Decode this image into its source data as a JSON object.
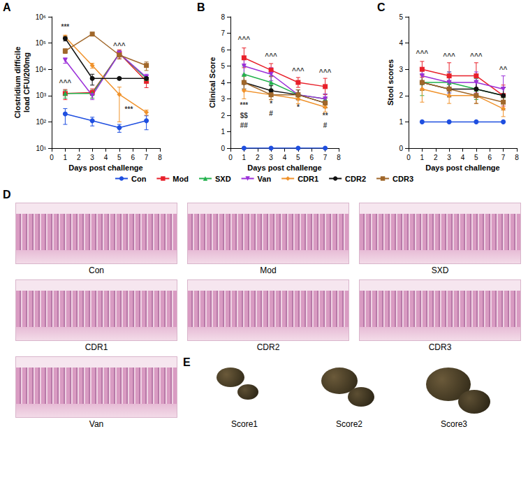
{
  "chart_data": [
    {
      "type": "line",
      "panel": "A",
      "xlabel": "Days post challenge",
      "ylabel": "Clostridium difficile\nload CFU/200mg",
      "x": [
        1,
        3,
        5,
        7
      ],
      "xlim": [
        0,
        8
      ],
      "xticks": [
        0,
        1,
        2,
        3,
        4,
        5,
        6,
        7,
        8
      ],
      "ylim": [
        10,
        1000000
      ],
      "yticks": [
        {
          "value": 10,
          "label": "10¹"
        },
        {
          "value": 100,
          "label": "10²"
        },
        {
          "value": 1000,
          "label": "10³"
        },
        {
          "value": 10000,
          "label": "10⁴"
        },
        {
          "value": 100000,
          "label": "10⁵"
        },
        {
          "value": 1000000,
          "label": "10⁶"
        }
      ],
      "log": "y",
      "grid": false,
      "legend": "bottom",
      "series": [
        {
          "name": "Con",
          "color": "#1f4fe0",
          "marker": "circle",
          "values": [
            200,
            110,
            60,
            110
          ],
          "errors": [
            120,
            40,
            20,
            60
          ]
        },
        {
          "name": "Mod",
          "color": "#e8202a",
          "marker": "square",
          "values": [
            1200,
            1300,
            40000,
            3500
          ],
          "errors": [
            500,
            500,
            15000,
            1500
          ]
        },
        {
          "name": "SXD",
          "color": "#22b14c",
          "marker": "triangle",
          "values": [
            1200,
            1200,
            40000,
            4500
          ],
          "errors": [
            400,
            400,
            10000,
            1500
          ]
        },
        {
          "name": "Van",
          "color": "#9b30d9",
          "marker": "triangle_down",
          "values": [
            22000,
            1000,
            40000,
            5000
          ],
          "errors": [
            5000,
            300,
            10000,
            1500
          ]
        },
        {
          "name": "CDR1",
          "color": "#f0922b",
          "marker": "diamond",
          "values": [
            170000,
            14000,
            1100,
            230
          ],
          "errors": [
            30000,
            3000,
            1000,
            50
          ]
        },
        {
          "name": "CDR2",
          "color": "#111111",
          "marker": "circle",
          "values": [
            150000,
            4500,
            4500,
            4500
          ],
          "errors": [
            30000,
            2000,
            500,
            500
          ]
        },
        {
          "name": "CDR3",
          "color": "#a0672a",
          "marker": "square",
          "values": [
            50000,
            220000,
            35000,
            14000
          ],
          "errors": [
            10000,
            20000,
            10000,
            5000
          ]
        }
      ],
      "annotations": [
        {
          "x": 1,
          "y": 400000,
          "text": "***"
        },
        {
          "x": 1,
          "y": 3000,
          "text": "^^^"
        },
        {
          "x": 5,
          "y": 80000,
          "text": "^^^"
        },
        {
          "x": 5.7,
          "y": 300,
          "text": "***"
        }
      ]
    },
    {
      "type": "line",
      "panel": "B",
      "xlabel": "Days post challenge",
      "ylabel": "Clinical Score",
      "x": [
        1,
        3,
        5,
        7
      ],
      "xlim": [
        0,
        8
      ],
      "xticks": [
        0,
        1,
        2,
        3,
        4,
        5,
        6,
        7,
        8
      ],
      "ylim": [
        0,
        8
      ],
      "yticks": [
        0,
        1,
        2,
        3,
        4,
        5,
        6,
        7,
        8
      ],
      "grid": false,
      "legend": "bottom",
      "series": [
        {
          "name": "Con",
          "color": "#1f4fe0",
          "marker": "circle",
          "values": [
            0,
            0,
            0,
            0
          ],
          "errors": [
            0,
            0,
            0,
            0
          ]
        },
        {
          "name": "Mod",
          "color": "#e8202a",
          "marker": "square",
          "values": [
            5.5,
            4.75,
            4.0,
            3.75
          ],
          "errors": [
            0.6,
            0.4,
            0.3,
            0.5
          ]
        },
        {
          "name": "SXD",
          "color": "#22b14c",
          "marker": "triangle",
          "values": [
            4.5,
            4.0,
            3.25,
            3.0
          ],
          "errors": [
            0.5,
            0.4,
            0.3,
            0.3
          ]
        },
        {
          "name": "Van",
          "color": "#9b30d9",
          "marker": "triangle_down",
          "values": [
            5.0,
            4.5,
            3.25,
            3.0
          ],
          "errors": [
            0.5,
            0.4,
            0.3,
            0.3
          ]
        },
        {
          "name": "CDR1",
          "color": "#f0922b",
          "marker": "diamond",
          "values": [
            3.5,
            3.25,
            3.0,
            2.5
          ],
          "errors": [
            0.5,
            0.3,
            0.3,
            0.3
          ]
        },
        {
          "name": "CDR2",
          "color": "#111111",
          "marker": "circle",
          "values": [
            4.0,
            3.5,
            3.25,
            2.75
          ],
          "errors": [
            0.4,
            0.3,
            0.3,
            0.3
          ]
        },
        {
          "name": "CDR3",
          "color": "#a0672a",
          "marker": "square",
          "values": [
            4.0,
            3.25,
            3.25,
            2.75
          ],
          "errors": [
            0.4,
            0.3,
            0.3,
            0.3
          ]
        }
      ],
      "annotations": [
        {
          "x": 1,
          "y": 6.6,
          "text": "^^^"
        },
        {
          "x": 3,
          "y": 5.6,
          "text": "^^^"
        },
        {
          "x": 5,
          "y": 4.7,
          "text": "^^^"
        },
        {
          "x": 7,
          "y": 4.6,
          "text": "^^^"
        },
        {
          "x": 1,
          "y": 2.6,
          "text": "***"
        },
        {
          "x": 1,
          "y": 2.0,
          "text": "$$"
        },
        {
          "x": 1,
          "y": 1.4,
          "text": "##"
        },
        {
          "x": 3,
          "y": 2.7,
          "text": "*"
        },
        {
          "x": 3,
          "y": 2.1,
          "text": "#"
        },
        {
          "x": 5,
          "y": 2.5,
          "text": "*"
        },
        {
          "x": 7,
          "y": 2.0,
          "text": "**"
        },
        {
          "x": 7,
          "y": 1.4,
          "text": "#"
        }
      ]
    },
    {
      "type": "line",
      "panel": "C",
      "xlabel": "Days post challenge",
      "ylabel": "Stool scores",
      "x": [
        1,
        3,
        5,
        7
      ],
      "xlim": [
        0,
        8
      ],
      "xticks": [
        0,
        1,
        2,
        3,
        4,
        5,
        6,
        7,
        8
      ],
      "ylim": [
        0,
        5
      ],
      "yticks": [
        0,
        1,
        2,
        3,
        4,
        5
      ],
      "grid": false,
      "legend": "bottom",
      "series": [
        {
          "name": "Con",
          "color": "#1f4fe0",
          "marker": "circle",
          "values": [
            1,
            1,
            1,
            1
          ],
          "errors": [
            0,
            0,
            0,
            0
          ]
        },
        {
          "name": "Mod",
          "color": "#e8202a",
          "marker": "square",
          "values": [
            3.0,
            2.75,
            2.75,
            2.0
          ],
          "errors": [
            0.3,
            0.5,
            0.5,
            0.4
          ]
        },
        {
          "name": "SXD",
          "color": "#22b14c",
          "marker": "triangle",
          "values": [
            2.5,
            2.5,
            2.25,
            2.0
          ],
          "errors": [
            0.5,
            0.4,
            0.4,
            0.3
          ]
        },
        {
          "name": "Van",
          "color": "#9b30d9",
          "marker": "triangle_down",
          "values": [
            2.75,
            2.5,
            2.5,
            2.25
          ],
          "errors": [
            0.3,
            0.4,
            0.4,
            0.5
          ]
        },
        {
          "name": "CDR1",
          "color": "#f0922b",
          "marker": "diamond",
          "values": [
            2.25,
            2.0,
            2.0,
            1.5
          ],
          "errors": [
            0.5,
            0.3,
            0.3,
            0.3
          ]
        },
        {
          "name": "CDR2",
          "color": "#111111",
          "marker": "circle",
          "values": [
            2.5,
            2.25,
            2.25,
            2.0
          ],
          "errors": [
            0.3,
            0.3,
            0.3,
            0.3
          ]
        },
        {
          "name": "CDR3",
          "color": "#a0672a",
          "marker": "square",
          "values": [
            2.5,
            2.25,
            2.0,
            1.75
          ],
          "errors": [
            0.3,
            0.3,
            0.3,
            0.3
          ]
        }
      ],
      "annotations": [
        {
          "x": 1,
          "y": 3.6,
          "text": "^^^"
        },
        {
          "x": 3,
          "y": 3.5,
          "text": "^^^"
        },
        {
          "x": 5,
          "y": 3.5,
          "text": "^^^"
        },
        {
          "x": 7,
          "y": 3.0,
          "text": "^^"
        }
      ]
    }
  ],
  "histology": {
    "panel": "D",
    "images": [
      "Con",
      "Mod",
      "SXD",
      "CDR1",
      "CDR2",
      "CDR3",
      "Van"
    ]
  },
  "stool": {
    "panel": "E",
    "images": [
      "Score1",
      "Score2",
      "Score3"
    ]
  }
}
